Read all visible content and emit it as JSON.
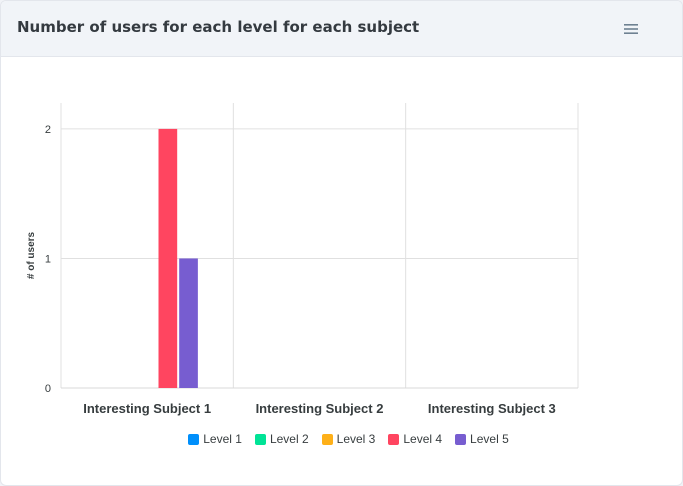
{
  "header": {
    "title": "Number of users for each level for each subject",
    "menu_icon": "hamburger-menu-icon"
  },
  "chart_data": {
    "type": "bar",
    "title": "",
    "xlabel": "",
    "ylabel": "# of users",
    "categories": [
      "Interesting Subject 1",
      "Interesting Subject 2",
      "Interesting Subject 3"
    ],
    "ylim": [
      0,
      2.2
    ],
    "yticks": [
      0,
      1,
      2
    ],
    "grid": true,
    "legend_position": "bottom",
    "series": [
      {
        "name": "Level 1",
        "color": "#008ffb",
        "values": [
          0,
          0,
          0
        ]
      },
      {
        "name": "Level 2",
        "color": "#00e396",
        "values": [
          0,
          0,
          0
        ]
      },
      {
        "name": "Level 3",
        "color": "#feb019",
        "values": [
          0,
          0,
          0
        ]
      },
      {
        "name": "Level 4",
        "color": "#ff4560",
        "values": [
          2,
          0,
          0
        ]
      },
      {
        "name": "Level 5",
        "color": "#775dd0",
        "values": [
          1,
          0,
          0
        ]
      }
    ]
  }
}
